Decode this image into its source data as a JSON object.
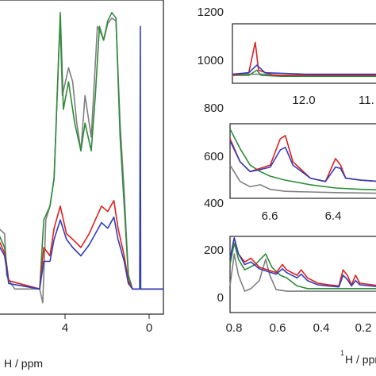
{
  "chart_data": [
    {
      "type": "line",
      "panel": "main",
      "xlabel_prefix": "H / ppm",
      "x_ticks": [
        "4",
        "0"
      ],
      "xlim": [
        7,
        -1
      ],
      "colors": {
        "gray": "#7f7f7f",
        "green": "#2e8b3a",
        "red": "#e02020",
        "blue": "#2f3fb8"
      },
      "series": [
        {
          "color": "gray",
          "points": [
            [
              7,
              0.22
            ],
            [
              6.7,
              0.2
            ],
            [
              6.6,
              0.05
            ],
            [
              6.4,
              0.02
            ],
            [
              6.2,
              0
            ],
            [
              5,
              0
            ],
            [
              4.85,
              -0.05
            ],
            [
              4.7,
              0.25
            ],
            [
              4.5,
              0.3
            ],
            [
              4.3,
              0.4
            ],
            [
              4.2,
              0.6
            ],
            [
              4.05,
              0.9
            ],
            [
              4.0,
              0.95
            ],
            [
              3.9,
              0.7
            ],
            [
              3.6,
              0.8
            ],
            [
              3.4,
              0.75
            ],
            [
              3.2,
              0.6
            ],
            [
              3.0,
              0.5
            ],
            [
              2.8,
              0.7
            ],
            [
              2.5,
              0.55
            ],
            [
              2.2,
              0.95
            ],
            [
              2.0,
              0.92
            ],
            [
              1.9,
              0.9
            ],
            [
              1.7,
              0.96
            ],
            [
              1.5,
              0.98
            ],
            [
              1.3,
              0.97
            ],
            [
              1.1,
              0.6
            ],
            [
              0.9,
              0.35
            ],
            [
              0.7,
              0.05
            ],
            [
              0.5,
              0
            ],
            [
              0,
              0
            ],
            [
              -0.5,
              0
            ],
            [
              -1,
              0
            ]
          ]
        },
        {
          "color": "green",
          "points": [
            [
              7,
              0.2
            ],
            [
              6.7,
              0.15
            ],
            [
              6.5,
              0.03
            ],
            [
              5,
              0
            ],
            [
              4.8,
              0.25
            ],
            [
              4.5,
              0.3
            ],
            [
              4.3,
              0.4
            ],
            [
              4.15,
              0.7
            ],
            [
              4.0,
              1.0
            ],
            [
              3.85,
              0.65
            ],
            [
              3.6,
              0.75
            ],
            [
              3.3,
              0.6
            ],
            [
              3.0,
              0.5
            ],
            [
              2.8,
              0.6
            ],
            [
              2.5,
              0.5
            ],
            [
              2.3,
              0.7
            ],
            [
              2.1,
              0.95
            ],
            [
              1.9,
              0.9
            ],
            [
              1.7,
              0.97
            ],
            [
              1.5,
              1.0
            ],
            [
              1.3,
              0.98
            ],
            [
              1.1,
              0.55
            ],
            [
              0.9,
              0.3
            ],
            [
              0.7,
              0.05
            ],
            [
              0.5,
              0
            ],
            [
              0,
              0
            ],
            [
              -1,
              0
            ]
          ]
        },
        {
          "color": "red",
          "points": [
            [
              7,
              0.18
            ],
            [
              6.7,
              0.13
            ],
            [
              6.5,
              0.03
            ],
            [
              5,
              0
            ],
            [
              4.8,
              0.15
            ],
            [
              4.5,
              0.12
            ],
            [
              4.3,
              0.22
            ],
            [
              4.0,
              0.3
            ],
            [
              3.7,
              0.2
            ],
            [
              3.4,
              0.18
            ],
            [
              3.0,
              0.15
            ],
            [
              2.6,
              0.2
            ],
            [
              2.3,
              0.25
            ],
            [
              2.0,
              0.3
            ],
            [
              1.7,
              0.28
            ],
            [
              1.4,
              0.32
            ],
            [
              1.2,
              0.22
            ],
            [
              0.9,
              0.12
            ],
            [
              0.7,
              0.03
            ],
            [
              0.5,
              0
            ],
            [
              0,
              0
            ],
            [
              -1,
              0
            ]
          ]
        },
        {
          "color": "blue",
          "points": [
            [
              7,
              0.16
            ],
            [
              6.7,
              0.12
            ],
            [
              6.5,
              0.02
            ],
            [
              5,
              0
            ],
            [
              4.8,
              0.1
            ],
            [
              4.5,
              0.1
            ],
            [
              4.3,
              0.18
            ],
            [
              4.0,
              0.25
            ],
            [
              3.7,
              0.18
            ],
            [
              3.4,
              0.15
            ],
            [
              3.0,
              0.12
            ],
            [
              2.6,
              0.16
            ],
            [
              2.3,
              0.2
            ],
            [
              2.0,
              0.24
            ],
            [
              1.7,
              0.22
            ],
            [
              1.4,
              0.26
            ],
            [
              1.2,
              0.18
            ],
            [
              0.9,
              0.1
            ],
            [
              0.7,
              0.02
            ],
            [
              0.5,
              0
            ],
            [
              0.15,
              0
            ],
            [
              0.12,
              0.95
            ],
            [
              0.1,
              0
            ],
            [
              -1,
              0
            ]
          ]
        }
      ]
    },
    {
      "type": "line",
      "panel": "top-right",
      "x_ticks": [
        "12.0",
        "11."
      ],
      "y_ticks": [
        "1200",
        "1000",
        "800"
      ],
      "xlim": [
        12.9,
        11.1
      ],
      "colors": {
        "gray": "#7f7f7f",
        "green": "#2e8b3a",
        "red": "#e02020",
        "blue": "#2f3fb8"
      },
      "series": [
        {
          "color": "gray",
          "points": [
            [
              12.9,
              0.12
            ],
            [
              12.7,
              0.12
            ],
            [
              12.5,
              0.12
            ],
            [
              12.3,
              0.1
            ],
            [
              12.0,
              0.1
            ],
            [
              11.7,
              0.1
            ],
            [
              11.4,
              0.1
            ],
            [
              11.1,
              0.1
            ]
          ]
        },
        {
          "color": "green",
          "points": [
            [
              12.9,
              0.1
            ],
            [
              12.7,
              0.1
            ],
            [
              12.6,
              0.2
            ],
            [
              12.55,
              0.1
            ],
            [
              12.3,
              0.08
            ],
            [
              11.1,
              0.08
            ]
          ]
        },
        {
          "color": "red",
          "points": [
            [
              12.9,
              0.1
            ],
            [
              12.7,
              0.15
            ],
            [
              12.62,
              0.75
            ],
            [
              12.58,
              0.2
            ],
            [
              12.4,
              0.1
            ],
            [
              11.1,
              0.1
            ]
          ]
        },
        {
          "color": "blue",
          "points": [
            [
              12.9,
              0.12
            ],
            [
              12.7,
              0.15
            ],
            [
              12.6,
              0.3
            ],
            [
              12.5,
              0.15
            ],
            [
              12.0,
              0.12
            ],
            [
              11.1,
              0.12
            ]
          ]
        }
      ]
    },
    {
      "type": "line",
      "panel": "middle-right",
      "x_ticks": [
        "6.6",
        "6.4"
      ],
      "y_ticks": [
        "600",
        "400"
      ],
      "xlim": [
        6.82,
        6.22
      ],
      "colors": {
        "gray": "#7f7f7f",
        "green": "#2e8b3a",
        "red": "#e02020",
        "blue": "#2f3fb8"
      },
      "series": [
        {
          "color": "gray",
          "points": [
            [
              6.82,
              0.45
            ],
            [
              6.78,
              0.2
            ],
            [
              6.74,
              0.12
            ],
            [
              6.7,
              0.15
            ],
            [
              6.66,
              0.08
            ],
            [
              6.6,
              0.05
            ],
            [
              6.5,
              0.04
            ],
            [
              6.4,
              0.03
            ],
            [
              6.22,
              0.02
            ]
          ]
        },
        {
          "color": "green",
          "points": [
            [
              6.82,
              1.0
            ],
            [
              6.78,
              0.7
            ],
            [
              6.74,
              0.45
            ],
            [
              6.7,
              0.35
            ],
            [
              6.66,
              0.28
            ],
            [
              6.6,
              0.22
            ],
            [
              6.5,
              0.15
            ],
            [
              6.4,
              0.1
            ],
            [
              6.3,
              0.08
            ],
            [
              6.22,
              0.07
            ]
          ]
        },
        {
          "color": "red",
          "points": [
            [
              6.82,
              0.85
            ],
            [
              6.78,
              0.5
            ],
            [
              6.74,
              0.35
            ],
            [
              6.7,
              0.4
            ],
            [
              6.66,
              0.45
            ],
            [
              6.62,
              0.85
            ],
            [
              6.6,
              0.9
            ],
            [
              6.57,
              0.5
            ],
            [
              6.5,
              0.25
            ],
            [
              6.44,
              0.2
            ],
            [
              6.4,
              0.55
            ],
            [
              6.38,
              0.45
            ],
            [
              6.36,
              0.25
            ],
            [
              6.3,
              0.22
            ],
            [
              6.22,
              0.2
            ]
          ]
        },
        {
          "color": "blue",
          "points": [
            [
              6.82,
              0.82
            ],
            [
              6.78,
              0.5
            ],
            [
              6.74,
              0.35
            ],
            [
              6.7,
              0.38
            ],
            [
              6.66,
              0.42
            ],
            [
              6.62,
              0.68
            ],
            [
              6.6,
              0.72
            ],
            [
              6.57,
              0.45
            ],
            [
              6.5,
              0.25
            ],
            [
              6.44,
              0.2
            ],
            [
              6.4,
              0.42
            ],
            [
              6.38,
              0.4
            ],
            [
              6.36,
              0.25
            ],
            [
              6.3,
              0.22
            ],
            [
              6.22,
              0.2
            ]
          ]
        }
      ]
    },
    {
      "type": "line",
      "panel": "bottom-right",
      "xlabel_prefix": "H / ppm",
      "x_ticks": [
        "0.8",
        "0.6",
        "0.4",
        "0.2"
      ],
      "y_ticks": [
        "200",
        "0"
      ],
      "xlim": [
        0.82,
        0.1
      ],
      "colors": {
        "gray": "#7f7f7f",
        "green": "#2e8b3a",
        "red": "#e02020",
        "blue": "#2f3fb8"
      },
      "series": [
        {
          "color": "gray",
          "points": [
            [
              0.82,
              0.1
            ],
            [
              0.8,
              0.7
            ],
            [
              0.78,
              0.3
            ],
            [
              0.75,
              0.0
            ],
            [
              0.72,
              0.05
            ],
            [
              0.68,
              0.2
            ],
            [
              0.65,
              0.6
            ],
            [
              0.63,
              0.3
            ],
            [
              0.6,
              0.03
            ],
            [
              0.55,
              0.0
            ],
            [
              0.1,
              0.0
            ]
          ]
        },
        {
          "color": "green",
          "points": [
            [
              0.82,
              0.5
            ],
            [
              0.8,
              0.9
            ],
            [
              0.78,
              0.6
            ],
            [
              0.75,
              0.4
            ],
            [
              0.7,
              0.5
            ],
            [
              0.65,
              0.7
            ],
            [
              0.62,
              0.45
            ],
            [
              0.58,
              0.3
            ],
            [
              0.55,
              0.25
            ],
            [
              0.5,
              0.1
            ],
            [
              0.45,
              0.05
            ],
            [
              0.4,
              0.05
            ],
            [
              0.1,
              0.05
            ]
          ]
        },
        {
          "color": "red",
          "points": [
            [
              0.82,
              0.6
            ],
            [
              0.8,
              1.0
            ],
            [
              0.78,
              0.7
            ],
            [
              0.75,
              0.55
            ],
            [
              0.72,
              0.62
            ],
            [
              0.68,
              0.45
            ],
            [
              0.6,
              0.35
            ],
            [
              0.57,
              0.5
            ],
            [
              0.55,
              0.4
            ],
            [
              0.5,
              0.3
            ],
            [
              0.48,
              0.4
            ],
            [
              0.45,
              0.25
            ],
            [
              0.4,
              0.15
            ],
            [
              0.35,
              0.12
            ],
            [
              0.3,
              0.1
            ],
            [
              0.28,
              0.4
            ],
            [
              0.26,
              0.3
            ],
            [
              0.24,
              0.12
            ],
            [
              0.22,
              0.3
            ],
            [
              0.2,
              0.15
            ],
            [
              0.1,
              0.1
            ]
          ]
        },
        {
          "color": "blue",
          "points": [
            [
              0.82,
              0.6
            ],
            [
              0.8,
              1.0
            ],
            [
              0.78,
              0.7
            ],
            [
              0.75,
              0.5
            ],
            [
              0.72,
              0.55
            ],
            [
              0.68,
              0.42
            ],
            [
              0.6,
              0.32
            ],
            [
              0.57,
              0.42
            ],
            [
              0.55,
              0.35
            ],
            [
              0.5,
              0.25
            ],
            [
              0.48,
              0.32
            ],
            [
              0.45,
              0.2
            ],
            [
              0.4,
              0.12
            ],
            [
              0.35,
              0.1
            ],
            [
              0.3,
              0.08
            ],
            [
              0.28,
              0.3
            ],
            [
              0.26,
              0.22
            ],
            [
              0.24,
              0.1
            ],
            [
              0.22,
              0.2
            ],
            [
              0.2,
              0.12
            ],
            [
              0.1,
              0.08
            ]
          ]
        }
      ]
    }
  ]
}
